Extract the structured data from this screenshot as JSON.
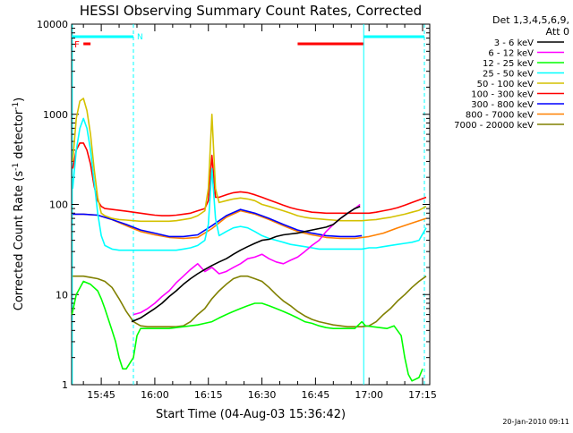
{
  "chart_data": {
    "type": "line",
    "title": "HESSI Observing Summary Count Rates, Corrected",
    "xlabel": "Start Time (04-Aug-03 15:36:42)",
    "ylabel_main": "Corrected Count Rate (s",
    "ylabel_sup1": "-1",
    "ylabel_mid": " detector",
    "ylabel_sup2": "-1",
    "ylabel_end": ")",
    "x_range_minutes": [
      36.7,
      137.0
    ],
    "y_scale": "log",
    "ylim": [
      1,
      10000
    ],
    "xticks": [
      {
        "t": 45,
        "label": "15:45"
      },
      {
        "t": 60,
        "label": "16:00"
      },
      {
        "t": 75,
        "label": "16:15"
      },
      {
        "t": 90,
        "label": "16:30"
      },
      {
        "t": 105,
        "label": "16:45"
      },
      {
        "t": 120,
        "label": "17:00"
      },
      {
        "t": 135,
        "label": "17:15"
      }
    ],
    "yticks": [
      {
        "v": 1,
        "label": "1"
      },
      {
        "v": 10,
        "label": "10"
      },
      {
        "v": 100,
        "label": "100"
      },
      {
        "v": 1000,
        "label": "1000"
      },
      {
        "v": 10000,
        "label": "10000"
      }
    ],
    "legend": {
      "header1": "Det 1,3,4,5,6,9,",
      "header2": "Att 0",
      "placement": "right"
    },
    "annotations": {
      "night_label": "N",
      "flare_label": "F"
    },
    "night_bands": [
      [
        36.7,
        54.0
      ],
      [
        118.5,
        135.5
      ]
    ],
    "flare_markers": [
      [
        40.0,
        42.0
      ],
      [
        100.0,
        118.5
      ]
    ],
    "vertical_markers": [
      {
        "t": 36.9,
        "style": "solid",
        "color": "#00ffff"
      },
      {
        "t": 54.0,
        "style": "dashed",
        "color": "#00ffff"
      },
      {
        "t": 118.5,
        "style": "solid",
        "color": "#00ffff"
      },
      {
        "t": 135.5,
        "style": "dashed",
        "color": "#00ffff"
      }
    ],
    "series": [
      {
        "name": "3 - 6 keV",
        "color": "#000000",
        "x": [
          53.5,
          56,
          58,
          60,
          62,
          64,
          66,
          68,
          70,
          72,
          74,
          76,
          78,
          80,
          82,
          84,
          86,
          88,
          90,
          92,
          94,
          96,
          98,
          100,
          102,
          104,
          106,
          108,
          110,
          112,
          114,
          116,
          117.5
        ],
        "y": [
          5,
          5.5,
          6.2,
          7,
          8,
          9.5,
          11,
          13,
          15,
          17,
          19,
          21,
          23,
          25,
          28,
          31,
          34,
          37,
          40,
          41,
          44,
          46,
          47,
          48,
          50,
          52,
          54,
          56,
          60,
          70,
          80,
          90,
          95
        ]
      },
      {
        "name": "6 - 12 keV",
        "color": "#ff00ff",
        "x": [
          54,
          56,
          58,
          60,
          62,
          64,
          66,
          68,
          70,
          72,
          74,
          76,
          78,
          80,
          82,
          84,
          86,
          88,
          90,
          92,
          94,
          96,
          98,
          100,
          102,
          104,
          106,
          108,
          110,
          112,
          114,
          116,
          117.5
        ],
        "y": [
          6,
          6.3,
          7,
          8,
          9.5,
          11,
          13.5,
          16,
          19,
          22,
          18,
          20,
          17,
          18,
          20,
          22,
          25,
          26,
          28,
          25,
          23,
          22,
          24,
          26,
          30,
          35,
          40,
          50,
          60,
          70,
          80,
          90,
          100
        ]
      },
      {
        "name": "12 - 25 keV",
        "color": "#00ff00",
        "x": [
          36.8,
          38,
          40,
          42,
          44,
          45,
          46,
          48,
          49,
          50,
          51,
          52,
          54,
          55,
          56,
          58,
          60,
          62,
          64,
          66,
          68,
          70,
          72,
          74,
          76,
          78,
          80,
          82,
          84,
          86,
          88,
          90,
          92,
          94,
          96,
          98,
          100,
          102,
          104,
          106,
          108,
          110,
          112,
          114,
          116,
          118,
          119,
          121,
          123,
          125,
          127,
          129,
          130,
          131,
          132,
          134,
          135
        ],
        "y": [
          6,
          10,
          14,
          13,
          11,
          9,
          7,
          4,
          3,
          2,
          1.5,
          1.5,
          2,
          3.5,
          4.2,
          4.2,
          4.2,
          4.2,
          4.2,
          4.3,
          4.4,
          4.5,
          4.6,
          4.8,
          5,
          5.5,
          6,
          6.5,
          7,
          7.5,
          8,
          8,
          7.5,
          7,
          6.5,
          6,
          5.5,
          5,
          4.8,
          4.5,
          4.3,
          4.2,
          4.2,
          4.2,
          4.2,
          5,
          4.5,
          4.4,
          4.3,
          4.2,
          4.5,
          3.5,
          2,
          1.3,
          1.1,
          1.2,
          1.5
        ]
      },
      {
        "name": "25 - 50 keV",
        "color": "#00ffff",
        "x": [
          37,
          38,
          39,
          40,
          41,
          42,
          43,
          44,
          45,
          46,
          48,
          50,
          52,
          54,
          56,
          58,
          60,
          62,
          64,
          66,
          68,
          70,
          72,
          74,
          75,
          76,
          77,
          78,
          80,
          82,
          84,
          86,
          88,
          90,
          92,
          94,
          96,
          98,
          100,
          102,
          104,
          106,
          108,
          110,
          112,
          114,
          116,
          118,
          120,
          122,
          124,
          126,
          128,
          130,
          132,
          134,
          136
        ],
        "y": [
          150,
          400,
          700,
          900,
          700,
          400,
          180,
          80,
          45,
          35,
          32,
          31,
          31,
          31,
          31,
          31,
          31,
          31,
          31,
          31,
          32,
          33,
          35,
          40,
          60,
          250,
          70,
          45,
          50,
          55,
          57,
          55,
          50,
          45,
          42,
          40,
          38,
          36,
          35,
          34,
          33,
          32,
          32,
          32,
          32,
          32,
          32,
          32,
          33,
          33,
          34,
          35,
          36,
          37,
          38,
          40,
          55
        ]
      },
      {
        "name": "50 - 100 keV",
        "color": "#d4c100",
        "x": [
          37,
          38,
          39,
          40,
          41,
          42,
          43,
          44,
          45,
          46,
          48,
          50,
          52,
          54,
          56,
          58,
          60,
          62,
          64,
          66,
          68,
          70,
          72,
          74,
          75,
          76,
          77,
          78,
          80,
          82,
          84,
          86,
          88,
          90,
          92,
          94,
          96,
          98,
          100,
          102,
          104,
          106,
          108,
          110,
          112,
          114,
          116,
          118,
          120,
          122,
          124,
          126,
          128,
          130,
          132,
          134,
          136
        ],
        "y": [
          300,
          900,
          1400,
          1500,
          1100,
          600,
          250,
          120,
          80,
          75,
          70,
          68,
          67,
          66,
          65,
          65,
          65,
          65,
          65,
          66,
          68,
          70,
          75,
          85,
          150,
          1000,
          150,
          105,
          110,
          115,
          118,
          115,
          110,
          100,
          95,
          90,
          85,
          80,
          75,
          72,
          70,
          69,
          68,
          67,
          66,
          66,
          66,
          66,
          67,
          68,
          70,
          72,
          75,
          78,
          82,
          86,
          95
        ]
      },
      {
        "name": "100 - 300 keV",
        "color": "#ff0000",
        "x": [
          37,
          38,
          39,
          40,
          41,
          42,
          43,
          44,
          45,
          46,
          48,
          50,
          52,
          54,
          56,
          58,
          60,
          62,
          64,
          66,
          68,
          70,
          72,
          74,
          75,
          76,
          77,
          78,
          80,
          82,
          84,
          86,
          88,
          90,
          92,
          94,
          96,
          98,
          100,
          102,
          104,
          106,
          108,
          110,
          112,
          114,
          116,
          118,
          120,
          122,
          124,
          126,
          128,
          130,
          132,
          134,
          136
        ],
        "y": [
          250,
          400,
          480,
          480,
          400,
          280,
          160,
          110,
          95,
          90,
          88,
          86,
          84,
          82,
          80,
          78,
          76,
          75,
          75,
          76,
          78,
          80,
          85,
          90,
          110,
          350,
          120,
          120,
          128,
          135,
          138,
          135,
          128,
          120,
          112,
          105,
          98,
          92,
          88,
          85,
          82,
          81,
          80,
          80,
          80,
          80,
          80,
          80,
          80,
          82,
          85,
          88,
          92,
          98,
          105,
          112,
          120
        ]
      },
      {
        "name": "300 - 800 keV",
        "color": "#0000ff",
        "x": [
          37,
          40,
          44,
          48,
          52,
          56,
          60,
          64,
          68,
          72,
          76,
          80,
          84,
          88,
          92,
          96,
          100,
          104,
          108,
          112,
          116,
          118
        ],
        "y": [
          78,
          78,
          76,
          68,
          60,
          52,
          48,
          44,
          44,
          46,
          58,
          75,
          88,
          80,
          70,
          60,
          52,
          48,
          45,
          44,
          44,
          45
        ]
      },
      {
        "name": "800 - 7000 keV",
        "color": "#ff8000",
        "x": [
          37,
          40,
          44,
          48,
          52,
          56,
          60,
          64,
          68,
          72,
          76,
          80,
          84,
          88,
          92,
          96,
          100,
          104,
          108,
          112,
          116,
          120,
          124,
          128,
          132,
          136
        ],
        "y": [
          78,
          78,
          76,
          68,
          58,
          50,
          46,
          43,
          42,
          43,
          54,
          72,
          85,
          78,
          68,
          58,
          50,
          46,
          43,
          42,
          42,
          44,
          48,
          55,
          62,
          70
        ]
      },
      {
        "name": "7000 - 20000 keV",
        "color": "#808000",
        "x": [
          37,
          40,
          42,
          44,
          46,
          48,
          50,
          52,
          54,
          56,
          58,
          60,
          62,
          64,
          66,
          68,
          70,
          72,
          74,
          76,
          78,
          80,
          82,
          84,
          86,
          88,
          90,
          92,
          94,
          96,
          98,
          100,
          102,
          104,
          106,
          108,
          110,
          112,
          114,
          116,
          118,
          120,
          122,
          124,
          126,
          128,
          130,
          132,
          134,
          136
        ],
        "y": [
          16,
          16,
          15.5,
          15,
          14,
          12,
          9,
          6.5,
          5,
          4.5,
          4.4,
          4.4,
          4.4,
          4.4,
          4.4,
          4.5,
          5,
          6,
          7,
          9,
          11,
          13,
          15,
          16,
          16,
          15,
          14,
          12,
          10,
          8.5,
          7.5,
          6.5,
          5.8,
          5.3,
          5,
          4.8,
          4.6,
          4.5,
          4.4,
          4.4,
          4.4,
          4.5,
          5,
          6,
          7,
          8.5,
          10,
          12,
          14,
          16
        ]
      }
    ]
  },
  "footer": {
    "timestamp": "20-Jan-2010 09:11"
  }
}
